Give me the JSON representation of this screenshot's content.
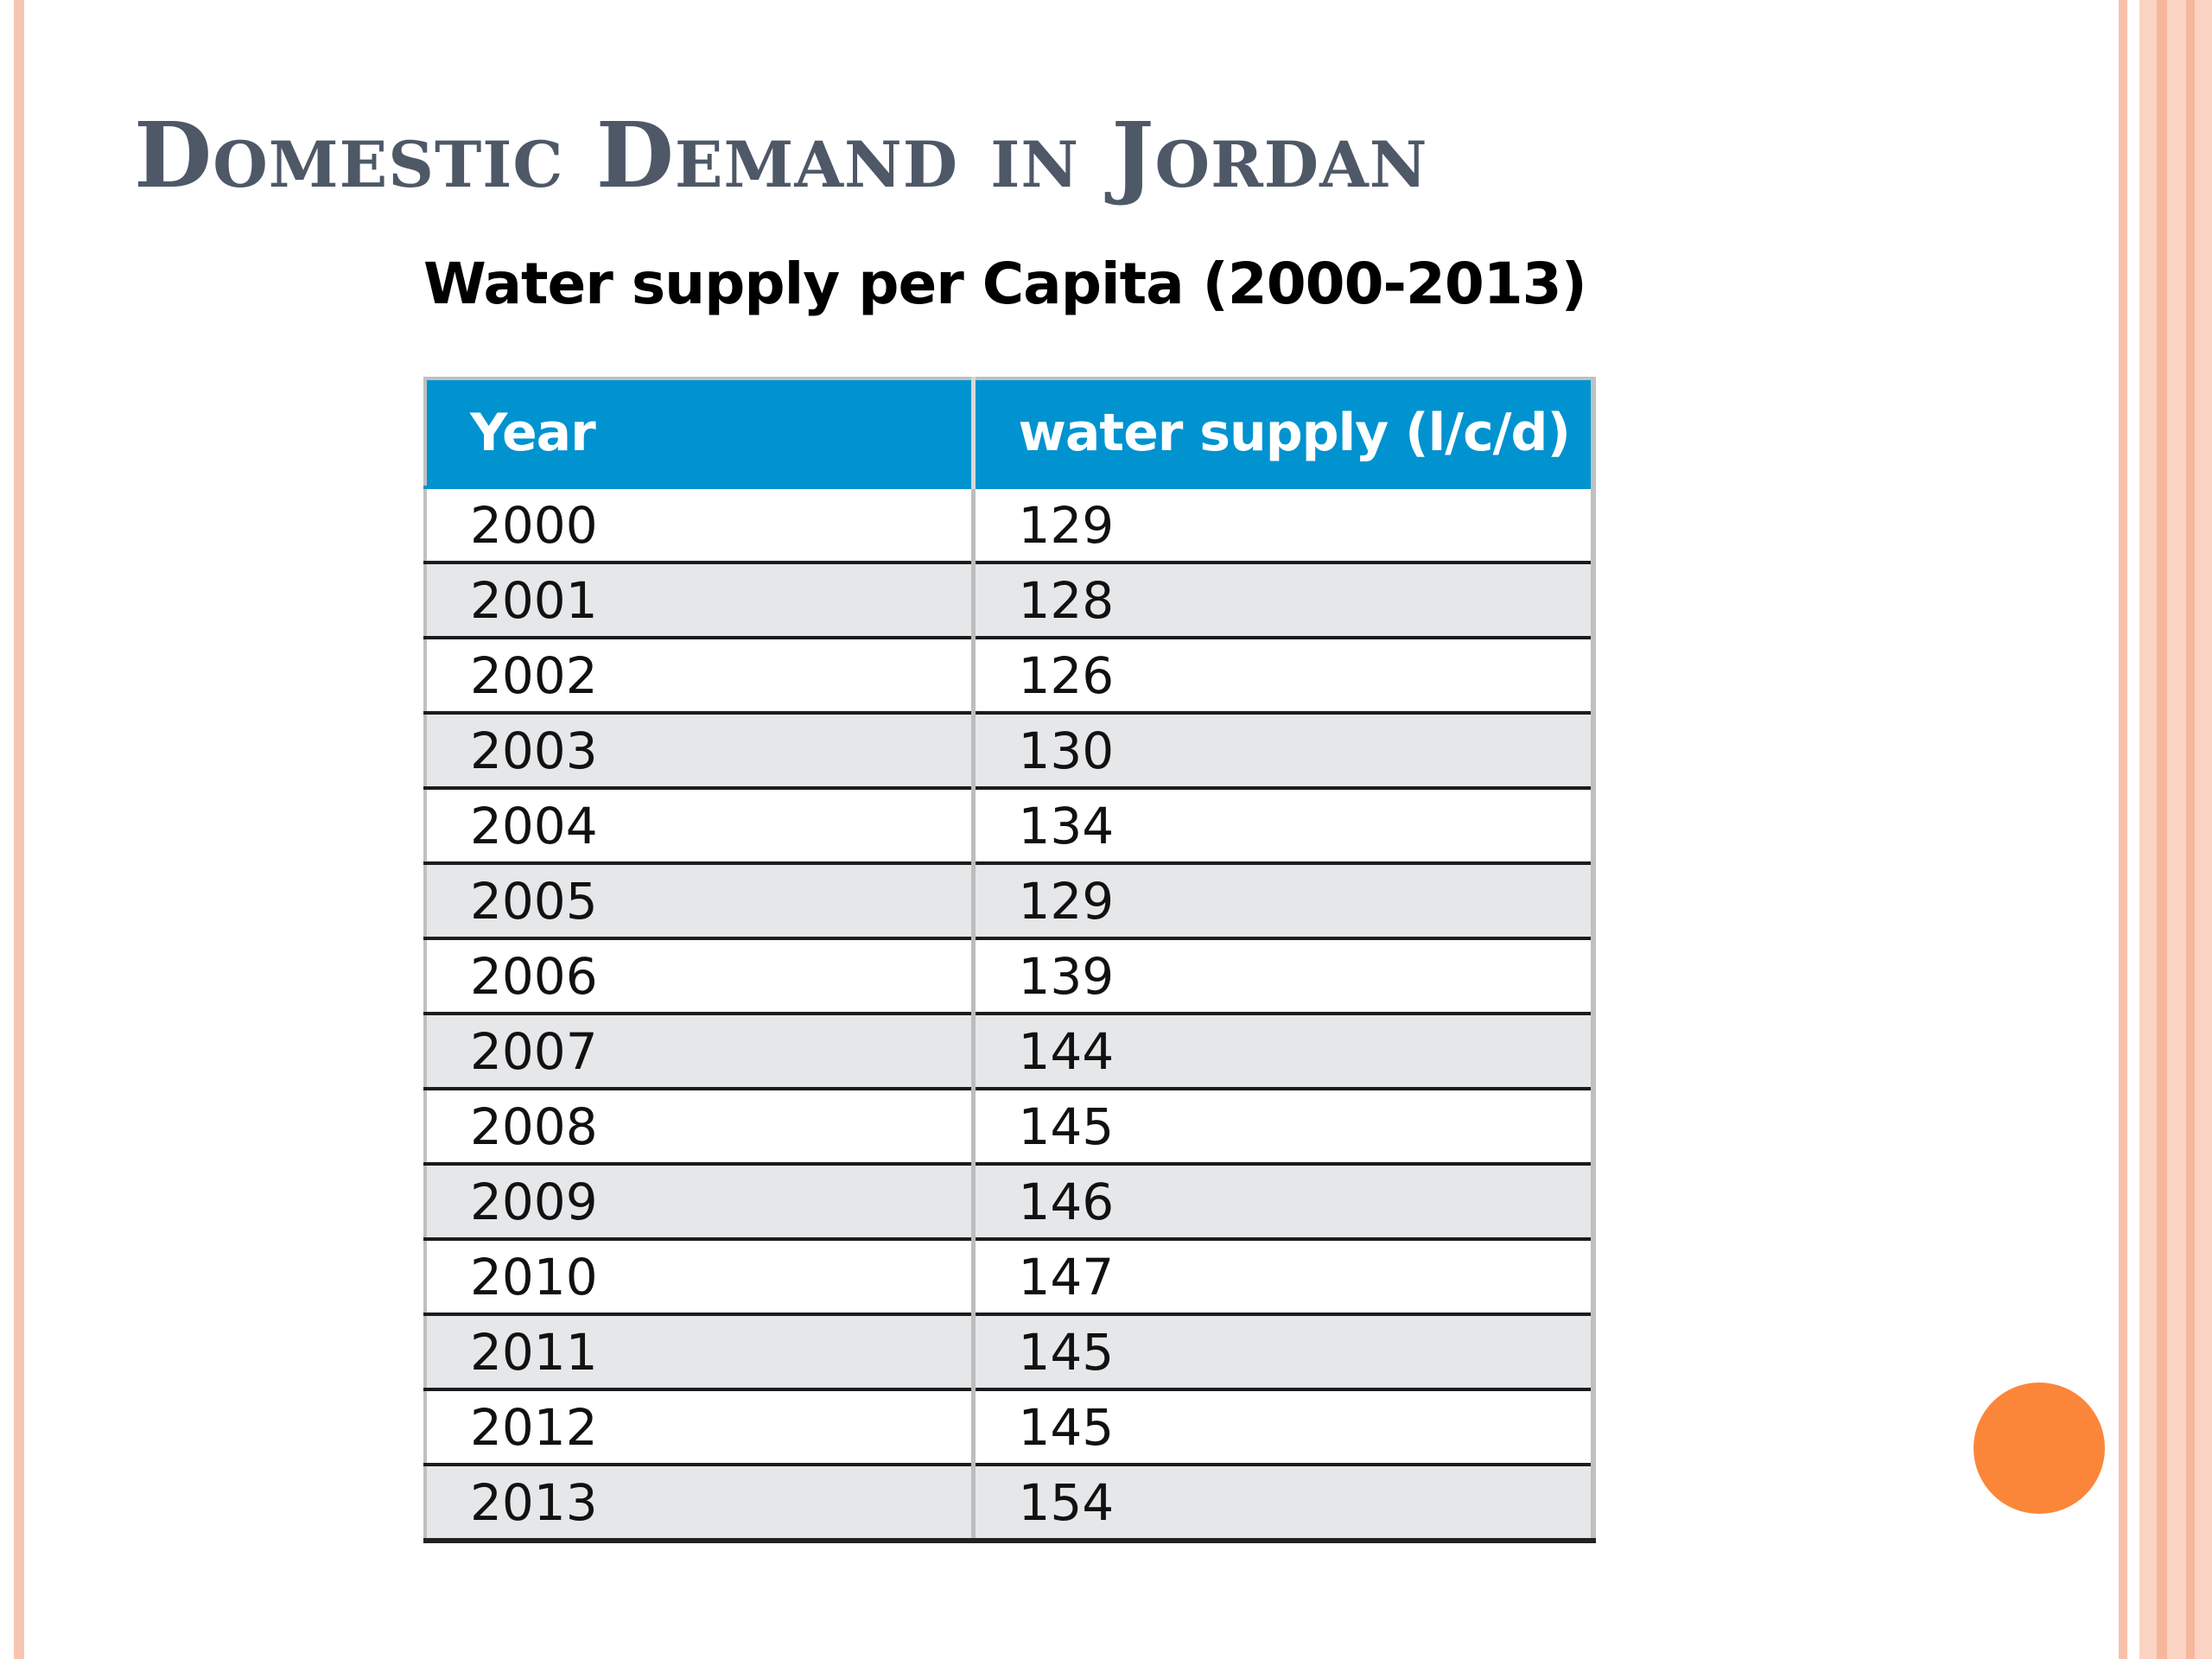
{
  "slide": {
    "title": "Domestic Demand in Jordan"
  },
  "table": {
    "caption": "Water supply per Capita (2000-2013)",
    "headers": [
      "Year",
      "water supply (l/c/d)"
    ],
    "rows": [
      [
        "2000",
        "129"
      ],
      [
        "2001",
        "128"
      ],
      [
        "2002",
        "126"
      ],
      [
        "2003",
        "130"
      ],
      [
        "2004",
        "134"
      ],
      [
        "2005",
        "129"
      ],
      [
        "2006",
        "139"
      ],
      [
        "2007",
        "144"
      ],
      [
        "2008",
        "145"
      ],
      [
        "2009",
        "146"
      ],
      [
        "2010",
        "147"
      ],
      [
        "2011",
        "145"
      ],
      [
        "2012",
        "145"
      ],
      [
        "2013",
        "154"
      ]
    ]
  },
  "colors": {
    "header_blue": "#0093d0",
    "title_gray": "#4e5867",
    "accent_orange": "#fb8639",
    "border_peach": "#f8c5b2",
    "row_stripe": "#e6e7e9"
  },
  "icons": {
    "bullet": "orange-circle-icon"
  }
}
